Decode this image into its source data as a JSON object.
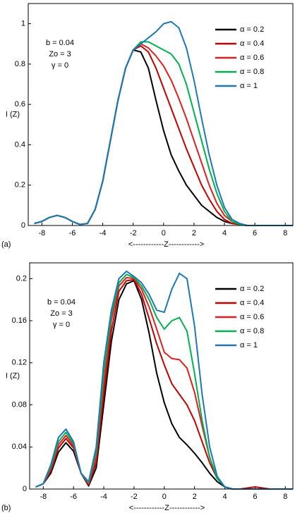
{
  "chart_data": [
    {
      "type": "line",
      "panel_label": "(a)",
      "ylabel": "I (Z)",
      "xlabel": "<------------Z------------>",
      "annotations": [
        "b = 0.04",
        "Zo = 3",
        "γ = 0"
      ],
      "xlim": [
        -8.9,
        8.5
      ],
      "ylim": [
        0,
        1.1
      ],
      "xticks": [
        -8,
        -6,
        -4,
        -2,
        0,
        2,
        4,
        6,
        8
      ],
      "yticks": [
        0,
        0.2,
        0.4,
        0.6,
        0.8,
        1
      ],
      "x": [
        -8.5,
        -8,
        -7.5,
        -7,
        -6.5,
        -6,
        -5.5,
        -5,
        -4.5,
        -4,
        -3.5,
        -3,
        -2.5,
        -2,
        -1.5,
        -1,
        -0.5,
        0,
        0.5,
        1,
        1.5,
        2,
        2.5,
        3,
        3.5,
        4,
        4.5,
        5,
        5.5,
        6,
        6.5,
        7,
        7.5,
        8,
        8.5
      ],
      "series": [
        {
          "name": "α = 0.2",
          "color": "#000000",
          "values": [
            0.01,
            0.02,
            0.04,
            0.05,
            0.04,
            0.02,
            0.005,
            0.01,
            0.08,
            0.22,
            0.42,
            0.62,
            0.78,
            0.87,
            0.86,
            0.78,
            0.62,
            0.47,
            0.35,
            0.27,
            0.2,
            0.15,
            0.1,
            0.07,
            0.04,
            0.02,
            0.01,
            0.005,
            0,
            0,
            0,
            0,
            0,
            0,
            0
          ]
        },
        {
          "name": "α = 0.4",
          "color": "#c00000",
          "values": [
            0.01,
            0.02,
            0.04,
            0.05,
            0.04,
            0.02,
            0.005,
            0.01,
            0.08,
            0.22,
            0.42,
            0.62,
            0.78,
            0.87,
            0.89,
            0.86,
            0.78,
            0.68,
            0.58,
            0.48,
            0.38,
            0.29,
            0.2,
            0.13,
            0.07,
            0.03,
            0.01,
            0.005,
            0,
            0,
            0,
            0,
            0,
            0,
            0
          ]
        },
        {
          "name": "α = 0.6",
          "color": "#e02020",
          "values": [
            0.01,
            0.02,
            0.04,
            0.05,
            0.04,
            0.02,
            0.005,
            0.01,
            0.08,
            0.22,
            0.42,
            0.62,
            0.78,
            0.87,
            0.9,
            0.88,
            0.84,
            0.79,
            0.72,
            0.63,
            0.53,
            0.42,
            0.31,
            0.2,
            0.11,
            0.05,
            0.02,
            0.005,
            0,
            0,
            0,
            0,
            0,
            0,
            0
          ]
        },
        {
          "name": "α = 0.8",
          "color": "#00b050",
          "values": [
            0.01,
            0.02,
            0.04,
            0.05,
            0.04,
            0.02,
            0.005,
            0.01,
            0.08,
            0.22,
            0.42,
            0.62,
            0.78,
            0.87,
            0.91,
            0.91,
            0.89,
            0.87,
            0.85,
            0.8,
            0.7,
            0.56,
            0.42,
            0.28,
            0.16,
            0.07,
            0.02,
            0.005,
            0,
            0,
            0,
            0,
            0,
            0,
            0
          ]
        },
        {
          "name": "α = 1",
          "color": "#1f77b4",
          "values": [
            0.01,
            0.02,
            0.04,
            0.05,
            0.04,
            0.02,
            0.005,
            0.01,
            0.08,
            0.22,
            0.42,
            0.62,
            0.78,
            0.87,
            0.9,
            0.93,
            0.96,
            1.0,
            1.01,
            0.98,
            0.88,
            0.72,
            0.53,
            0.35,
            0.2,
            0.09,
            0.03,
            0.01,
            0,
            0,
            0,
            0,
            0,
            0,
            0
          ]
        }
      ]
    },
    {
      "type": "line",
      "panel_label": "(b)",
      "ylabel": "I (Z)",
      "xlabel": "<------------Z------------>",
      "annotations": [
        "b = 0.04",
        "Zo = 3",
        "γ = 0"
      ],
      "xlim": [
        -8.9,
        8.5
      ],
      "ylim": [
        0,
        0.215
      ],
      "xticks": [
        -8,
        -6,
        -4,
        -2,
        0,
        2,
        4,
        6,
        8
      ],
      "yticks": [
        0,
        0.04,
        0.08,
        0.12,
        0.16,
        0.2
      ],
      "x": [
        -8.5,
        -8,
        -7.5,
        -7,
        -6.5,
        -6,
        -5.5,
        -5,
        -4.5,
        -4,
        -3.5,
        -3,
        -2.5,
        -2,
        -1.5,
        -1,
        -0.5,
        0,
        0.5,
        1,
        1.5,
        2,
        2.5,
        3,
        3.5,
        4,
        4.5,
        5,
        5.5,
        6,
        6.5,
        7,
        7.5,
        8,
        8.5
      ],
      "series": [
        {
          "name": "α = 0.2",
          "color": "#000000",
          "values": [
            0.002,
            0.005,
            0.015,
            0.035,
            0.044,
            0.036,
            0.015,
            0.003,
            0.02,
            0.08,
            0.14,
            0.18,
            0.195,
            0.198,
            0.18,
            0.148,
            0.11,
            0.082,
            0.062,
            0.049,
            0.042,
            0.034,
            0.025,
            0.015,
            0.007,
            0.002,
            0,
            0,
            0,
            0,
            0,
            0,
            0,
            0,
            0
          ]
        },
        {
          "name": "α = 0.4",
          "color": "#c00000",
          "values": [
            0.002,
            0.005,
            0.017,
            0.039,
            0.048,
            0.039,
            0.015,
            0.004,
            0.025,
            0.09,
            0.15,
            0.188,
            0.198,
            0.199,
            0.185,
            0.162,
            0.138,
            0.118,
            0.1,
            0.09,
            0.08,
            0.065,
            0.045,
            0.025,
            0.01,
            0.002,
            0,
            0,
            0.001,
            0.002,
            0.001,
            0,
            0,
            0,
            0
          ]
        },
        {
          "name": "α = 0.6",
          "color": "#e02020",
          "values": [
            0.002,
            0.005,
            0.019,
            0.042,
            0.051,
            0.041,
            0.015,
            0.005,
            0.03,
            0.1,
            0.16,
            0.193,
            0.201,
            0.2,
            0.19,
            0.173,
            0.152,
            0.13,
            0.124,
            0.123,
            0.115,
            0.092,
            0.06,
            0.03,
            0.01,
            0.002,
            0,
            0,
            0,
            0,
            0,
            0,
            0,
            0,
            0
          ]
        },
        {
          "name": "α = 0.8",
          "color": "#00b050",
          "values": [
            0.002,
            0.005,
            0.021,
            0.045,
            0.054,
            0.043,
            0.015,
            0.006,
            0.035,
            0.11,
            0.165,
            0.196,
            0.204,
            0.201,
            0.193,
            0.18,
            0.163,
            0.152,
            0.16,
            0.163,
            0.15,
            0.11,
            0.065,
            0.03,
            0.01,
            0.002,
            0,
            0,
            0,
            0,
            0,
            0,
            0,
            0,
            0
          ]
        },
        {
          "name": "α = 1",
          "color": "#1f77b4",
          "values": [
            0.002,
            0.005,
            0.023,
            0.049,
            0.057,
            0.045,
            0.015,
            0.007,
            0.04,
            0.12,
            0.17,
            0.2,
            0.207,
            0.202,
            0.196,
            0.185,
            0.17,
            0.168,
            0.19,
            0.205,
            0.2,
            0.155,
            0.09,
            0.04,
            0.012,
            0.002,
            0,
            0,
            0,
            0,
            0,
            0,
            0,
            0,
            0
          ]
        }
      ]
    }
  ]
}
